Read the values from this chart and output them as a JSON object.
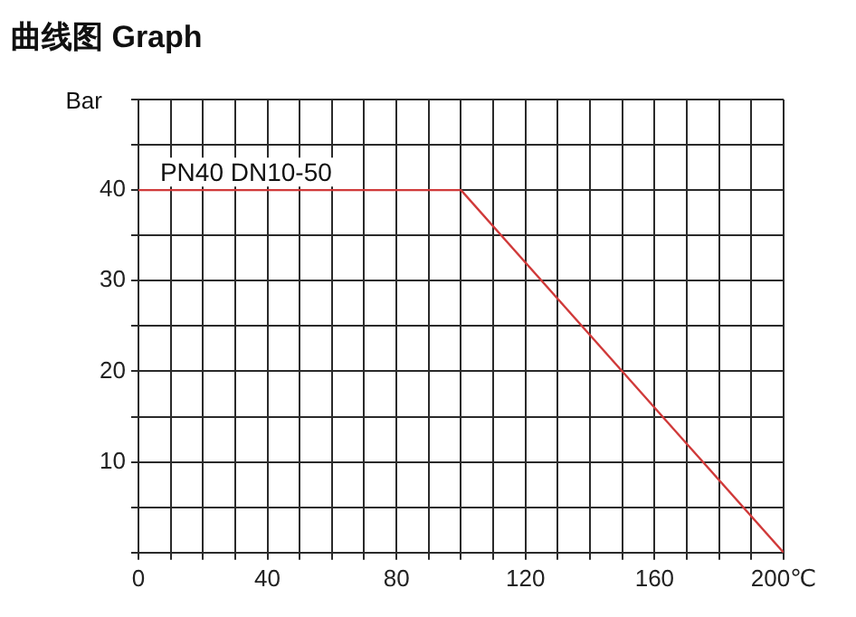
{
  "chart_data": {
    "type": "line",
    "title": "曲线图 Graph",
    "ylabel": "Bar",
    "x": [
      0,
      100,
      200
    ],
    "series": [
      {
        "name": "PN40 DN10-50",
        "color": "#d03a3a",
        "values": [
          40,
          40,
          0
        ]
      }
    ],
    "xlim": [
      0,
      200
    ],
    "xticks": [
      0,
      {
        "value": 10,
        "label": null
      },
      {
        "value": 20,
        "label": null
      },
      {
        "value": 30,
        "label": null
      },
      40,
      {
        "value": 50,
        "label": null
      },
      {
        "value": 60,
        "label": null
      },
      {
        "value": 70,
        "label": null
      },
      80,
      {
        "value": 90,
        "label": null
      },
      {
        "value": 100,
        "label": null
      },
      {
        "value": 110,
        "label": null
      },
      120,
      {
        "value": 130,
        "label": null
      },
      {
        "value": 140,
        "label": null
      },
      {
        "value": 150,
        "label": null
      },
      160,
      {
        "value": 170,
        "label": null
      },
      {
        "value": 180,
        "label": null
      },
      {
        "value": 190,
        "label": null
      },
      {
        "value": 200,
        "label": "200℃"
      }
    ],
    "ylim": [
      0,
      50
    ],
    "yticks": [
      {
        "value": 0,
        "label": null
      },
      {
        "value": 5,
        "label": null
      },
      10,
      {
        "value": 15,
        "label": null
      },
      20,
      {
        "value": 25,
        "label": null
      },
      30,
      {
        "value": 35,
        "label": null
      },
      40,
      {
        "value": 45,
        "label": null
      },
      {
        "value": 50,
        "label": null
      }
    ],
    "grid": true,
    "legend": false,
    "marker": "none",
    "line_style": "solid"
  }
}
